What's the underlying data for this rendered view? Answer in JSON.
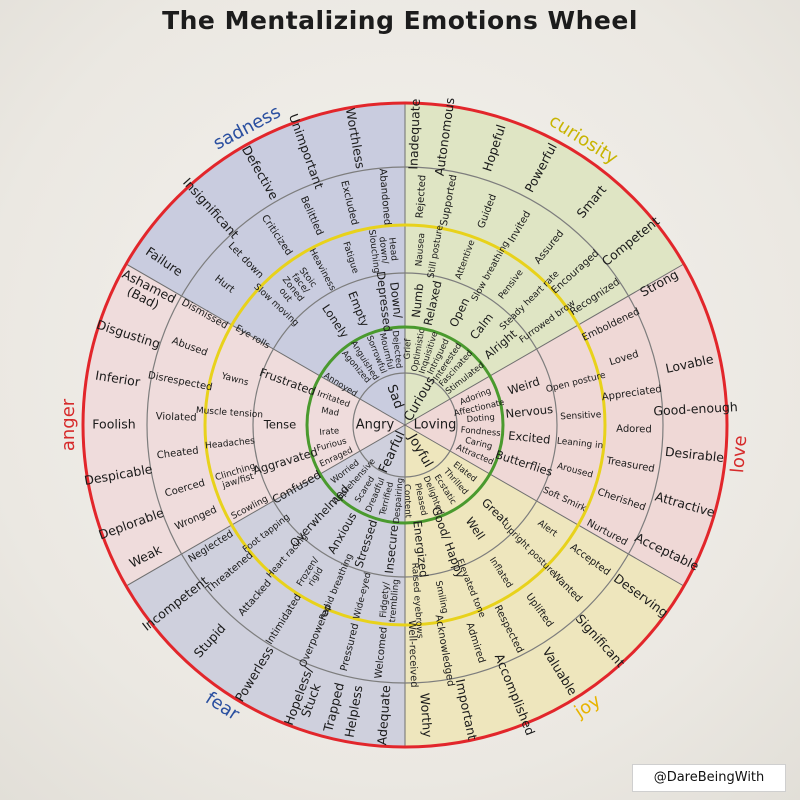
{
  "title": "The Mentalizing Emotions Wheel",
  "credit": "@DareBeingWith",
  "colors": {
    "sadness": "#c9ccdf",
    "curiosity": "#dfe5c4",
    "love": "#efd8d6",
    "joy": "#eee6bd",
    "fear": "#cfd0dd",
    "anger": "#efdcdc",
    "outer_ring": "#e2262b",
    "yellow_ring": "#e8d21b",
    "green_ring": "#4a9a2e",
    "gray_ring": "#7d7d7d",
    "sadness_label": "#2a4fa0",
    "curiosity_label": "#c8b400",
    "love_label": "#d62b2b",
    "joy_label": "#e8b400",
    "fear_label": "#2a4fa0",
    "anger_label": "#d62b2b"
  },
  "wheel": {
    "outer_labels": [
      {
        "key": "sadness",
        "text": "sadness",
        "angle": -118,
        "color": "#2a4fa0"
      },
      {
        "key": "curiosity",
        "text": "curiosity",
        "angle": -58,
        "color": "#c8b400"
      },
      {
        "key": "love",
        "text": "love",
        "angle": 5,
        "color": "#d62b2b"
      },
      {
        "key": "joy",
        "text": "joy",
        "angle": 57,
        "color": "#e8b400"
      },
      {
        "key": "fear",
        "text": "fear",
        "angle": 123,
        "color": "#2a4fa0"
      },
      {
        "key": "anger",
        "text": "anger",
        "angle": 180,
        "color": "#d62b2b"
      }
    ],
    "core": [
      {
        "text": "Sad",
        "angle": -110
      },
      {
        "text": "Curious",
        "angle": -60
      },
      {
        "text": "Loving",
        "angle": 0
      },
      {
        "text": "Joyful",
        "angle": 60
      },
      {
        "text": "Fearful",
        "angle": 115
      },
      {
        "text": "Angry",
        "angle": 180
      }
    ],
    "ring2": [
      {
        "text": "Grief",
        "angle": -88
      },
      {
        "text": "Mournful",
        "angle": -104
      },
      {
        "text": "Dejected",
        "angle": -96
      },
      {
        "text": "Sorrowful",
        "angle": -112
      },
      {
        "text": "Anguished",
        "angle": -122
      },
      {
        "text": "Agonized",
        "angle": -130
      },
      {
        "text": "Optimistic",
        "angle": -80
      },
      {
        "text": "Inquisitive",
        "angle": -72
      },
      {
        "text": "Intrigued",
        "angle": -64
      },
      {
        "text": "Interested",
        "angle": -56
      },
      {
        "text": "Fascinated",
        "angle": -48
      },
      {
        "text": "Stimulated",
        "angle": -38
      },
      {
        "text": "Adoring",
        "angle": -22
      },
      {
        "text": "Affectionate",
        "angle": -13
      },
      {
        "text": "Doting",
        "angle": -5
      },
      {
        "text": "Fondness",
        "angle": 5
      },
      {
        "text": "Caring",
        "angle": 14
      },
      {
        "text": "Attracted",
        "angle": 23
      },
      {
        "text": "Elated",
        "angle": 38
      },
      {
        "text": "Thrilled",
        "angle": 48
      },
      {
        "text": "Ecstatic",
        "angle": 58
      },
      {
        "text": "Delighted",
        "angle": 68
      },
      {
        "text": "Pleased",
        "angle": 78
      },
      {
        "text": "Content",
        "angle": 88
      },
      {
        "text": "Despairing",
        "angle": 95
      },
      {
        "text": "Terrified",
        "angle": 104
      },
      {
        "text": "Dreadful",
        "angle": 113
      },
      {
        "text": "Scared",
        "angle": 122
      },
      {
        "text": "Apprehensive",
        "angle": 132
      },
      {
        "text": "Worried",
        "angle": 142
      },
      {
        "text": "Enraged",
        "angle": 155
      },
      {
        "text": "Furious",
        "angle": 165
      },
      {
        "text": "Irate",
        "angle": 175
      },
      {
        "text": "Mad",
        "angle": 190
      },
      {
        "text": "Irritated",
        "angle": 200
      },
      {
        "text": "Annoyed",
        "angle": 212
      }
    ],
    "ring3": [
      {
        "text": "Numb",
        "angle": -84
      },
      {
        "text": "Down/ Depressed",
        "angle": -97
      },
      {
        "text": "Empty",
        "angle": -112
      },
      {
        "text": "Lonely",
        "angle": -124
      },
      {
        "text": "Relaxed",
        "angle": -77
      },
      {
        "text": "Open",
        "angle": -64
      },
      {
        "text": "Calm",
        "angle": -52
      },
      {
        "text": "Alright",
        "angle": -40
      },
      {
        "text": "Weird",
        "angle": -18
      },
      {
        "text": "Nervous",
        "angle": -6
      },
      {
        "text": "Excited",
        "angle": 6
      },
      {
        "text": "Butterflies",
        "angle": 18
      },
      {
        "text": "Great",
        "angle": 44
      },
      {
        "text": "Well",
        "angle": 56
      },
      {
        "text": "Good/ Happy",
        "angle": 70
      },
      {
        "text": "Energized",
        "angle": 83
      },
      {
        "text": "Insecure",
        "angle": 96
      },
      {
        "text": "Stressed",
        "angle": 108
      },
      {
        "text": "Anxious",
        "angle": 120
      },
      {
        "text": "Overwhelmed",
        "angle": 133
      },
      {
        "text": "Confused",
        "angle": 150
      },
      {
        "text": "Aggravated",
        "angle": 163
      },
      {
        "text": "Tense",
        "angle": 180
      },
      {
        "text": "Frustrated",
        "angle": 200
      }
    ],
    "ring4": [
      {
        "text": "Nausea",
        "angle": -85
      },
      {
        "text": "Head down/ Slouching",
        "angle": -97
      },
      {
        "text": "Fatigue",
        "angle": -108
      },
      {
        "text": "Heaviness",
        "angle": -118
      },
      {
        "text": "Stoic face/ Zoned out",
        "angle": -128
      },
      {
        "text": "Slow moving",
        "angle": -137
      },
      {
        "text": "Eye rolls",
        "angle": -150
      },
      {
        "text": "Still posture",
        "angle": -80
      },
      {
        "text": "Attentive",
        "angle": -70
      },
      {
        "text": "Slow breathing",
        "angle": -61
      },
      {
        "text": "Pensive",
        "angle": -53
      },
      {
        "text": "Steady heart rate",
        "angle": -45
      },
      {
        "text": "Furrowed brow",
        "angle": -36
      },
      {
        "text": "Open posture",
        "angle": -14
      },
      {
        "text": "Sensitive",
        "angle": -3
      },
      {
        "text": "Leaning in",
        "angle": 6
      },
      {
        "text": "Aroused",
        "angle": 15
      },
      {
        "text": "Soft Smirk",
        "angle": 25
      },
      {
        "text": "Alert",
        "angle": 36
      },
      {
        "text": "Upright posture",
        "angle": 45
      },
      {
        "text": "Inflated",
        "angle": 57
      },
      {
        "text": "Elevated tone",
        "angle": 68
      },
      {
        "text": "Smiling",
        "angle": 78
      },
      {
        "text": "Raised eyebrows",
        "angle": 86
      },
      {
        "text": "Fidgety/ trembling",
        "angle": 95
      },
      {
        "text": "Wide-eyed",
        "angle": 104
      },
      {
        "text": "Rapid breathing",
        "angle": 113
      },
      {
        "text": "Frozen/ rigid",
        "angle": 122
      },
      {
        "text": "Heart racing",
        "angle": 132
      },
      {
        "text": "Foot tapping",
        "angle": 142
      },
      {
        "text": "Scowling",
        "angle": 152
      },
      {
        "text": "Clinching jaw/fist",
        "angle": 163
      },
      {
        "text": "Headaches",
        "angle": 174
      },
      {
        "text": "Muscle tension",
        "angle": 184
      },
      {
        "text": "Yawns",
        "angle": 195
      }
    ],
    "ring5": [
      {
        "text": "Rejected",
        "angle": -86
      },
      {
        "text": "Abandoned",
        "angle": -95
      },
      {
        "text": "Excluded",
        "angle": -104
      },
      {
        "text": "Belittled",
        "angle": -114
      },
      {
        "text": "Criticized",
        "angle": -124
      },
      {
        "text": "Let down",
        "angle": -134
      },
      {
        "text": "Hurt",
        "angle": -142
      },
      {
        "text": "Supported",
        "angle": -79
      },
      {
        "text": "Guided",
        "angle": -69
      },
      {
        "text": "Invited",
        "angle": -60
      },
      {
        "text": "Assured",
        "angle": -51
      },
      {
        "text": "Encouraged",
        "angle": -42
      },
      {
        "text": "Recognized",
        "angle": -34
      },
      {
        "text": "Emboldened",
        "angle": -26
      },
      {
        "text": "Loved",
        "angle": -17
      },
      {
        "text": "Appreciated",
        "angle": -8
      },
      {
        "text": "Adored",
        "angle": 1
      },
      {
        "text": "Treasured",
        "angle": 10
      },
      {
        "text": "Cherished",
        "angle": 19
      },
      {
        "text": "Nurtured",
        "angle": 28
      },
      {
        "text": "Accepted",
        "angle": 36
      },
      {
        "text": "Wanted",
        "angle": 45
      },
      {
        "text": "Uplifted",
        "angle": 54
      },
      {
        "text": "Respected",
        "angle": 63
      },
      {
        "text": "Admired",
        "angle": 72
      },
      {
        "text": "Acknowledged",
        "angle": 80
      },
      {
        "text": "Well-received",
        "angle": 88
      },
      {
        "text": "Welcomed",
        "angle": 96
      },
      {
        "text": "Pressured",
        "angle": 104
      },
      {
        "text": "Overpowered",
        "angle": 113
      },
      {
        "text": "Intimidated",
        "angle": 122
      },
      {
        "text": "Attacked",
        "angle": 131
      },
      {
        "text": "Threatened",
        "angle": 140
      },
      {
        "text": "Neglected",
        "angle": 148
      },
      {
        "text": "Wronged",
        "angle": 156
      },
      {
        "text": "Coerced",
        "angle": 164
      },
      {
        "text": "Cheated",
        "angle": 173
      },
      {
        "text": "Violated",
        "angle": 182
      },
      {
        "text": "Disrespected",
        "angle": 191
      },
      {
        "text": "Abused",
        "angle": 200
      },
      {
        "text": "Dismissed",
        "angle": 209
      }
    ],
    "ring6": [
      {
        "text": "Inadequate",
        "angle": -88
      },
      {
        "text": "Worthless",
        "angle": -100
      },
      {
        "text": "Unimportant",
        "angle": -110
      },
      {
        "text": "Defective",
        "angle": -120
      },
      {
        "text": "Insignificant",
        "angle": -132
      },
      {
        "text": "Failure",
        "angle": -146
      },
      {
        "text": "Autonomous",
        "angle": -82
      },
      {
        "text": "Hopeful",
        "angle": -72
      },
      {
        "text": "Powerful",
        "angle": -62
      },
      {
        "text": "Smart",
        "angle": -50
      },
      {
        "text": "Competent",
        "angle": -39
      },
      {
        "text": "Strong",
        "angle": -29
      },
      {
        "text": "Lovable",
        "angle": -12
      },
      {
        "text": "Good-enough",
        "angle": -3
      },
      {
        "text": "Desirable",
        "angle": 6
      },
      {
        "text": "Attractive",
        "angle": 16
      },
      {
        "text": "Acceptable",
        "angle": 26
      },
      {
        "text": "Deserving",
        "angle": 36
      },
      {
        "text": "Significant",
        "angle": 48
      },
      {
        "text": "Valuable",
        "angle": 58
      },
      {
        "text": "Accomplished",
        "angle": 68
      },
      {
        "text": "Important",
        "angle": 78
      },
      {
        "text": "Worthy",
        "angle": 86
      },
      {
        "text": "Adequate",
        "angle": 94
      },
      {
        "text": "Helpless",
        "angle": 100
      },
      {
        "text": "Hopeless/ Stuck",
        "angle": 110
      },
      {
        "text": "Trapped",
        "angle": 104
      },
      {
        "text": "Powerless",
        "angle": 121
      },
      {
        "text": "Stupid",
        "angle": 132
      },
      {
        "text": "Incompetent",
        "angle": 142
      },
      {
        "text": "Weak",
        "angle": 153
      },
      {
        "text": "Deplorable",
        "angle": 160
      },
      {
        "text": "Despicable",
        "angle": 170
      },
      {
        "text": "Foolish",
        "angle": 180
      },
      {
        "text": "Inferior",
        "angle": 189
      },
      {
        "text": "Disgusting",
        "angle": 198
      },
      {
        "text": "Ashamed (Bad)",
        "angle": 207
      }
    ]
  }
}
